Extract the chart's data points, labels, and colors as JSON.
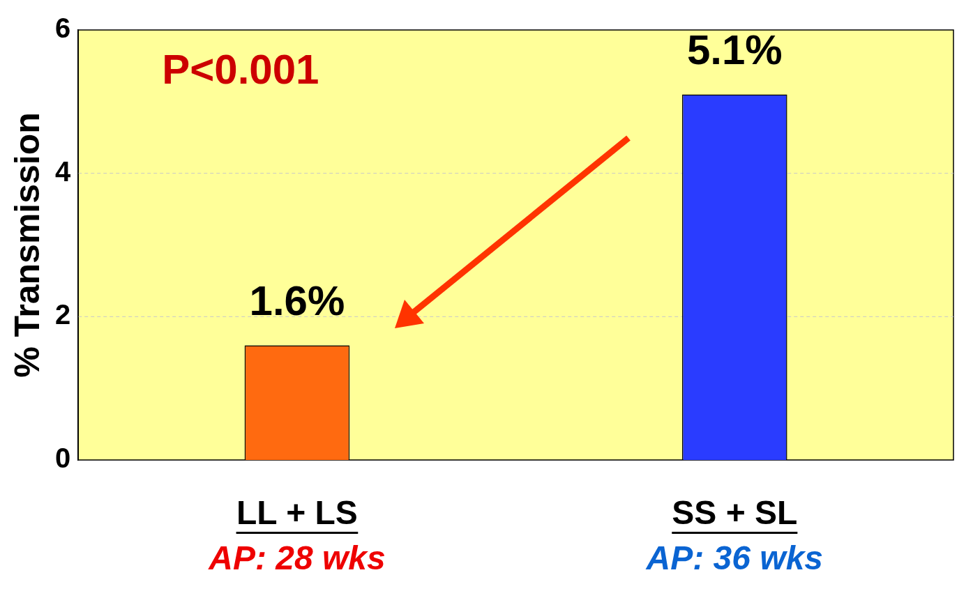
{
  "chart_data": {
    "type": "bar",
    "ylabel": "% Transmission",
    "categories": [
      "LL + LS",
      "SS + SL"
    ],
    "values": [
      1.6,
      5.1
    ],
    "colors": [
      "#ff6a10",
      "#2a3cff"
    ],
    "value_labels": [
      "1.6%",
      "5.1%"
    ],
    "ylim": [
      0,
      6
    ],
    "yticks": [
      0,
      2,
      4,
      6
    ],
    "grid": "y",
    "annotations": [
      "P<0.001",
      "AP: 28 wks",
      "AP: 36 wks"
    ]
  }
}
